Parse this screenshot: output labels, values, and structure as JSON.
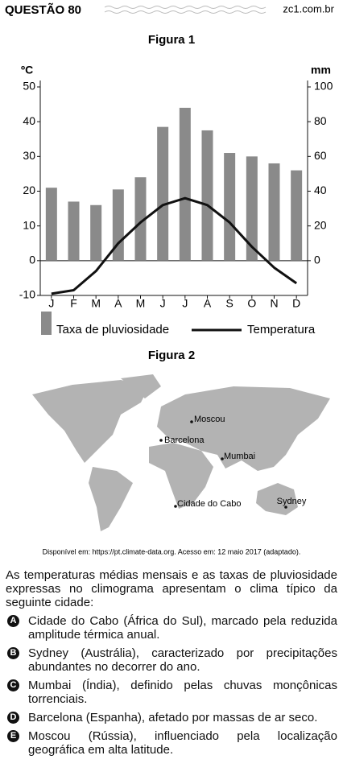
{
  "header": {
    "title": "QUESTÃO 80",
    "site": "zc1.com.br"
  },
  "chart_data": {
    "type": "bar",
    "title": "Figura 1",
    "y_label": "ºC",
    "y2_label": "mm",
    "categories": [
      "J",
      "F",
      "M",
      "A",
      "M",
      "J",
      "J",
      "A",
      "S",
      "O",
      "N",
      "D"
    ],
    "ylim": [
      -10,
      50
    ],
    "yticks": [
      -10,
      0,
      10,
      20,
      30,
      40,
      50
    ],
    "y2lim": [
      -20,
      100
    ],
    "y2ticks": [
      0,
      20,
      40,
      60,
      80,
      100
    ],
    "series": [
      {
        "name": "Taxa de pluviosidade",
        "type": "bar",
        "axis": "y2",
        "color": "#8a8a8a",
        "values": [
          42,
          34,
          32,
          41,
          48,
          77,
          88,
          75,
          62,
          60,
          56,
          52
        ]
      },
      {
        "name": "Temperatura",
        "type": "line",
        "color": "#111111",
        "values": [
          -9.5,
          -8.5,
          -3,
          5,
          11,
          16,
          18,
          16,
          11,
          4,
          -2,
          -6.5
        ]
      }
    ]
  },
  "figure2": {
    "title": "Figura 2",
    "cities": [
      "Moscou",
      "Barcelona",
      "Mumbai",
      "Cidade do Cabo",
      "Sydney"
    ],
    "source": "Disponível em: https://pt.climate-data.org. Acesso em: 12 maio 2017 (adaptado)."
  },
  "question": {
    "text": "As temperaturas médias mensais e as taxas de pluviosidade expressas no climograma apresentam o clima típico da seguinte cidade:",
    "options": [
      {
        "letter": "A",
        "text": "Cidade do Cabo (África do Sul), marcado pela reduzida amplitude térmica anual."
      },
      {
        "letter": "B",
        "text": "Sydney (Austrália), caracterizado por precipitações abundantes no decorrer do ano."
      },
      {
        "letter": "C",
        "text": "Mumbai (Índia), definido pelas chuvas monçônicas torrenciais."
      },
      {
        "letter": "D",
        "text": "Barcelona (Espanha), afetado por massas de ar seco."
      },
      {
        "letter": "E",
        "text": "Moscou (Rússia), influenciado pela localização geográfica em alta latitude."
      }
    ]
  }
}
